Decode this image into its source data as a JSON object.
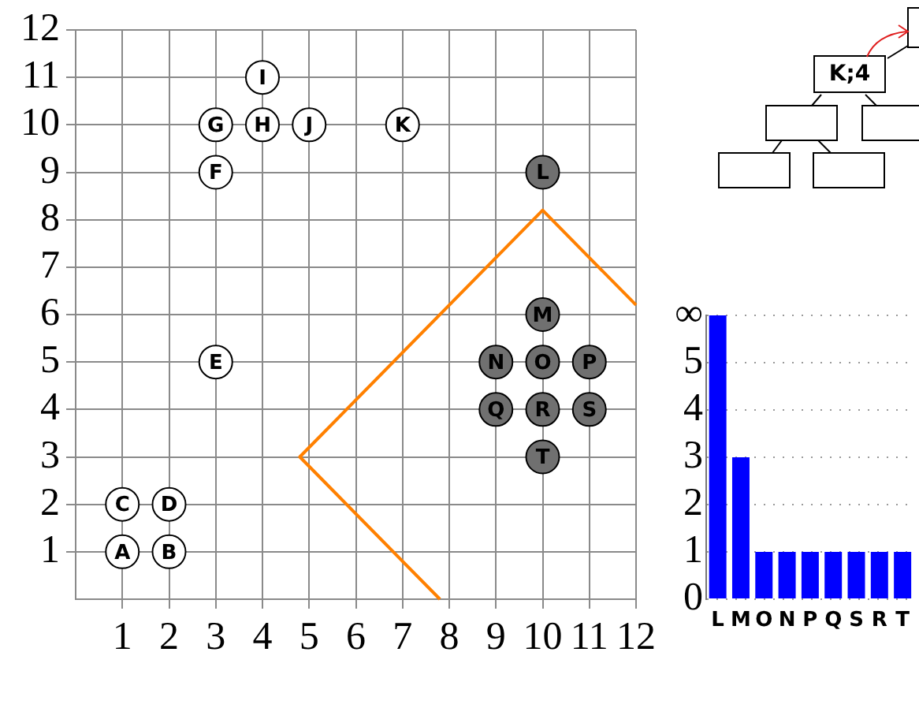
{
  "chart_data": [
    {
      "type": "scatter",
      "marker": "circle",
      "grid": true,
      "xlim": [
        0,
        12
      ],
      "ylim": [
        0,
        12
      ],
      "xticks": [
        1,
        2,
        3,
        4,
        5,
        6,
        7,
        8,
        9,
        10,
        11,
        12
      ],
      "yticks": [
        1,
        2,
        3,
        4,
        5,
        6,
        7,
        8,
        9,
        10,
        11,
        12
      ],
      "series": [
        {
          "color": "#ffffff",
          "x": [
            1,
            2,
            1,
            2,
            3,
            3,
            3,
            4,
            4,
            5,
            7
          ],
          "values": [
            1,
            1,
            2,
            2,
            5,
            9,
            10,
            10,
            11,
            10,
            10
          ]
        },
        {
          "color": "#707070",
          "x": [
            10,
            10,
            10,
            9,
            11,
            9,
            10,
            11,
            10
          ],
          "values": [
            9,
            6,
            5,
            5,
            5,
            4,
            4,
            4,
            3
          ]
        },
        {
          "type": "line",
          "marker": "none",
          "color": "#ff8000",
          "x": [
            12,
            10,
            4.8,
            7.8
          ],
          "values": [
            6.2,
            8.2,
            3,
            0
          ]
        }
      ],
      "annotations": [
        {
          "text": "A",
          "x": 1,
          "y": 1
        },
        {
          "text": "B",
          "x": 2,
          "y": 1
        },
        {
          "text": "C",
          "x": 1,
          "y": 2
        },
        {
          "text": "D",
          "x": 2,
          "y": 2
        },
        {
          "text": "E",
          "x": 3,
          "y": 5
        },
        {
          "text": "F",
          "x": 3,
          "y": 9
        },
        {
          "text": "G",
          "x": 3,
          "y": 10
        },
        {
          "text": "H",
          "x": 4,
          "y": 10
        },
        {
          "text": "I",
          "x": 4,
          "y": 11
        },
        {
          "text": "J",
          "x": 5,
          "y": 10
        },
        {
          "text": "K",
          "x": 7,
          "y": 10
        },
        {
          "text": "L",
          "x": 10,
          "y": 9
        },
        {
          "text": "M",
          "x": 10,
          "y": 6
        },
        {
          "text": "N",
          "x": 9,
          "y": 5
        },
        {
          "text": "O",
          "x": 10,
          "y": 5
        },
        {
          "text": "P",
          "x": 11,
          "y": 5
        },
        {
          "text": "Q",
          "x": 9,
          "y": 4
        },
        {
          "text": "R",
          "x": 10,
          "y": 4
        },
        {
          "text": "S",
          "x": 11,
          "y": 4
        },
        {
          "text": "T",
          "x": 10,
          "y": 3
        }
      ]
    },
    {
      "type": "bar",
      "categories": [
        "L",
        "M",
        "O",
        "N",
        "P",
        "Q",
        "S",
        "R",
        "T"
      ],
      "values": [
        6,
        3,
        1,
        1,
        1,
        1,
        1,
        1,
        1
      ],
      "color": "#0000ff",
      "ylim": [
        0,
        6
      ],
      "yticks": [
        0,
        1,
        2,
        3,
        4,
        5,
        {
          "value": 6,
          "label": "∞"
        }
      ],
      "grid": "y",
      "annotations": [
        "K;4"
      ]
    }
  ]
}
